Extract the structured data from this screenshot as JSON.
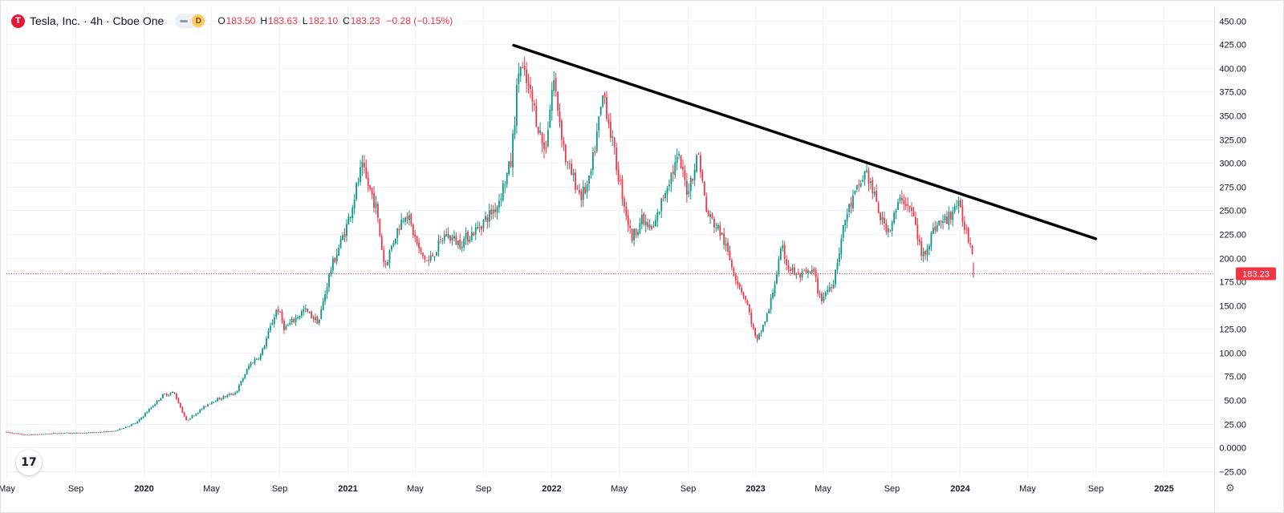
{
  "legend": {
    "logo_letter": "T",
    "symbol": "Tesla, Inc. · 4h · Cboe One",
    "interval_badge": "D",
    "open_label": "O",
    "open": "183.50",
    "high_label": "H",
    "high": "183.63",
    "low_label": "L",
    "low": "182.10",
    "close_label": "C",
    "close": "183.23",
    "change": "−0.28 (−0.15%)"
  },
  "brand": {
    "logo_text": "17"
  },
  "colors": {
    "up": "#089981",
    "down": "#f23645",
    "trendline": "#000000",
    "last_price": "#f23645",
    "grid": "#f0f3fa"
  },
  "chart_data": {
    "type": "candlestick",
    "title": "Tesla, Inc. · 4h · Cboe One",
    "x_range": [
      "2019-05-01",
      "2025-04-01"
    ],
    "y_range": [
      -32,
      465
    ],
    "y_ticks": [
      450,
      425,
      400,
      375,
      350,
      325,
      300,
      275,
      250,
      225,
      200,
      175,
      150,
      125,
      100,
      75,
      50,
      25,
      0,
      -25
    ],
    "y_tick_labels": [
      "450.00",
      "425.00",
      "400.00",
      "375.00",
      "350.00",
      "325.00",
      "300.00",
      "275.00",
      "250.00",
      "225.00",
      "200.00",
      "175.00",
      "150.00",
      "125.00",
      "100.00",
      "75.00",
      "50.00",
      "25.00",
      "0.0000",
      "−25.00"
    ],
    "x_ticks": [
      {
        "date": "2019-05-01",
        "label": "May"
      },
      {
        "date": "2019-09-01",
        "label": "Sep"
      },
      {
        "date": "2020-01-01",
        "label": "2020"
      },
      {
        "date": "2020-05-01",
        "label": "May"
      },
      {
        "date": "2020-09-01",
        "label": "Sep"
      },
      {
        "date": "2021-01-01",
        "label": "2021"
      },
      {
        "date": "2021-05-01",
        "label": "May"
      },
      {
        "date": "2021-09-01",
        "label": "Sep"
      },
      {
        "date": "2022-01-01",
        "label": "2022"
      },
      {
        "date": "2022-05-01",
        "label": "May"
      },
      {
        "date": "2022-09-01",
        "label": "Sep"
      },
      {
        "date": "2023-01-01",
        "label": "2023"
      },
      {
        "date": "2023-05-01",
        "label": "May"
      },
      {
        "date": "2023-09-01",
        "label": "Sep"
      },
      {
        "date": "2024-01-01",
        "label": "2024"
      },
      {
        "date": "2024-05-01",
        "label": "May"
      },
      {
        "date": "2024-09-01",
        "label": "Sep"
      },
      {
        "date": "2025-01-01",
        "label": "2025"
      }
    ],
    "price_path": [
      [
        "2019-05-01",
        16
      ],
      [
        "2019-06-05",
        13
      ],
      [
        "2019-08-01",
        15
      ],
      [
        "2019-09-15",
        15
      ],
      [
        "2019-11-10",
        17
      ],
      [
        "2019-12-20",
        26
      ],
      [
        "2020-02-05",
        55
      ],
      [
        "2020-02-25",
        58
      ],
      [
        "2020-03-18",
        28
      ],
      [
        "2020-05-01",
        48
      ],
      [
        "2020-06-15",
        58
      ],
      [
        "2020-07-10",
        88
      ],
      [
        "2020-07-30",
        98
      ],
      [
        "2020-08-28",
        148
      ],
      [
        "2020-09-10",
        125
      ],
      [
        "2020-10-15",
        145
      ],
      [
        "2020-11-10",
        132
      ],
      [
        "2020-11-30",
        185
      ],
      [
        "2020-12-31",
        235
      ],
      [
        "2021-01-26",
        295
      ],
      [
        "2021-02-20",
        255
      ],
      [
        "2021-03-08",
        190
      ],
      [
        "2021-03-28",
        225
      ],
      [
        "2021-04-15",
        250
      ],
      [
        "2021-05-10",
        205
      ],
      [
        "2021-05-25",
        195
      ],
      [
        "2021-06-25",
        225
      ],
      [
        "2021-07-20",
        215
      ],
      [
        "2021-08-20",
        230
      ],
      [
        "2021-09-25",
        255
      ],
      [
        "2021-10-20",
        300
      ],
      [
        "2021-11-04",
        405
      ],
      [
        "2021-11-25",
        370
      ],
      [
        "2021-12-20",
        310
      ],
      [
        "2022-01-04",
        390
      ],
      [
        "2022-01-27",
        300
      ],
      [
        "2022-02-23",
        265
      ],
      [
        "2022-03-10",
        280
      ],
      [
        "2022-04-04",
        375
      ],
      [
        "2022-04-26",
        300
      ],
      [
        "2022-05-24",
        220
      ],
      [
        "2022-06-10",
        240
      ],
      [
        "2022-07-01",
        228
      ],
      [
        "2022-07-28",
        280
      ],
      [
        "2022-08-16",
        305
      ],
      [
        "2022-09-01",
        270
      ],
      [
        "2022-09-21",
        310
      ],
      [
        "2022-10-05",
        248
      ],
      [
        "2022-11-01",
        225
      ],
      [
        "2022-11-25",
        182
      ],
      [
        "2022-12-15",
        155
      ],
      [
        "2023-01-03",
        110
      ],
      [
        "2023-01-25",
        145
      ],
      [
        "2023-02-17",
        210
      ],
      [
        "2023-03-01",
        190
      ],
      [
        "2023-03-18",
        180
      ],
      [
        "2023-04-15",
        185
      ],
      [
        "2023-04-27",
        155
      ],
      [
        "2023-05-20",
        175
      ],
      [
        "2023-06-12",
        245
      ],
      [
        "2023-07-18",
        292
      ],
      [
        "2023-08-15",
        238
      ],
      [
        "2023-08-28",
        230
      ],
      [
        "2023-09-20",
        265
      ],
      [
        "2023-10-10",
        245
      ],
      [
        "2023-10-26",
        200
      ],
      [
        "2023-11-20",
        235
      ],
      [
        "2023-12-10",
        240
      ],
      [
        "2023-12-28",
        258
      ],
      [
        "2024-01-10",
        235
      ],
      [
        "2024-01-24",
        208
      ],
      [
        "2024-01-26",
        183
      ]
    ],
    "trendline": {
      "start": [
        "2021-10-25",
        424
      ],
      "end": [
        "2024-09-01",
        220
      ]
    },
    "last_price": {
      "value": 183.23,
      "label": "183.23"
    }
  }
}
